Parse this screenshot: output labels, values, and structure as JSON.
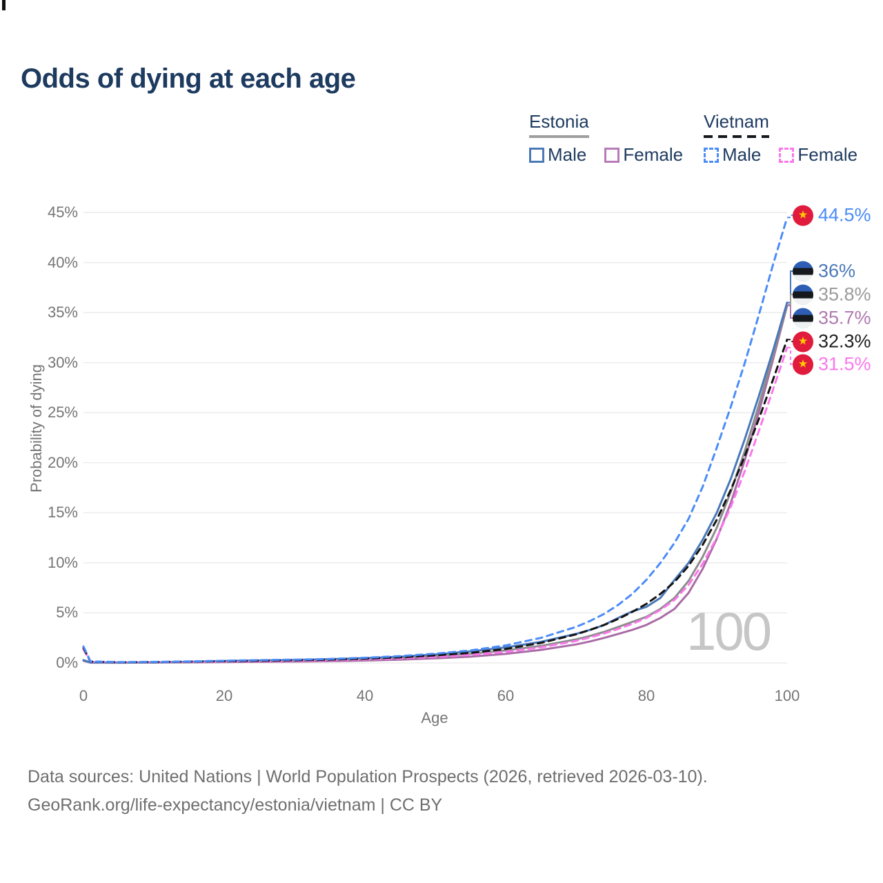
{
  "title": "Odds of dying at each age",
  "legend": {
    "estonia": {
      "name": "Estonia",
      "male": "Male",
      "female": "Female"
    },
    "vietnam": {
      "name": "Vietnam",
      "male": "Male",
      "female": "Female"
    }
  },
  "axes": {
    "x_label": "Age",
    "y_label": "Probability of dying",
    "x_tick_labels": [
      "0",
      "20",
      "40",
      "60",
      "80",
      "100"
    ],
    "y_tick_labels": [
      "0%",
      "5%",
      "10%",
      "15%",
      "20%",
      "25%",
      "30%",
      "35%",
      "40%",
      "45%"
    ]
  },
  "annotations": {
    "age_watermark": "100"
  },
  "footer": {
    "line1": "Data sources: United Nations | World Population Prospects (2026, retrieved 2026-03-10).",
    "line2": "GeoRank.org/life-expectancy/estonia/vietnam | CC BY"
  },
  "colors": {
    "title_text": "#1d3a5f",
    "tick_text": "#757575",
    "gridline": "#ececec",
    "estonia_male": "#4a78b8",
    "estonia_female": "#a96ba5",
    "estonia_total": "#8c8c8c",
    "vietnam_male": "#4b8cf7",
    "vietnam_female": "#fb77ec",
    "vietnam_total": "#141414",
    "estonia_flag_blue": "#2d5eb4",
    "vietnam_flag_red": "#e01b3c",
    "vietnam_flag_star": "#ffcd00",
    "watermark": "#c6c6c6"
  },
  "chart_data": {
    "type": "line",
    "title": "Odds of dying at each age",
    "xlabel": "Age",
    "ylabel": "Probability of dying",
    "xlim": [
      0,
      100
    ],
    "ylim_pct": [
      0,
      45
    ],
    "x_ticks": [
      0,
      20,
      40,
      60,
      80,
      100
    ],
    "y_ticks_pct": [
      0,
      5,
      10,
      15,
      20,
      25,
      30,
      35,
      40,
      45
    ],
    "grid": "horizontal-only",
    "legend_position": "top-right",
    "ages": [
      0,
      1,
      5,
      10,
      15,
      20,
      25,
      30,
      35,
      40,
      45,
      50,
      55,
      60,
      65,
      70,
      72,
      74,
      76,
      78,
      80,
      82,
      84,
      86,
      88,
      90,
      92,
      94,
      96,
      98,
      100
    ],
    "series": [
      {
        "id": "estonia_female",
        "name": "Estonia Female",
        "style": "solid",
        "color": "#a96ba5",
        "values_pct": [
          0.22,
          0.03,
          0.025,
          0.04,
          0.06,
          0.09,
          0.11,
          0.14,
          0.18,
          0.24,
          0.33,
          0.46,
          0.63,
          0.9,
          1.3,
          1.85,
          2.15,
          2.5,
          2.9,
          3.3,
          3.8,
          4.5,
          5.4,
          7.0,
          9.4,
          12.4,
          16.0,
          20.3,
          25.1,
          30.3,
          35.7
        ],
        "end_value_pct": 35.7
      },
      {
        "id": "estonia_total",
        "name": "Estonia",
        "style": "solid",
        "color": "#8c8c8c",
        "values_pct": [
          0.25,
          0.04,
          0.03,
          0.05,
          0.09,
          0.14,
          0.18,
          0.22,
          0.28,
          0.36,
          0.48,
          0.66,
          0.9,
          1.25,
          1.7,
          2.35,
          2.7,
          3.1,
          3.6,
          4.1,
          4.6,
          5.4,
          6.5,
          8.2,
          10.6,
          13.5,
          17.1,
          21.2,
          25.8,
          30.7,
          35.8
        ],
        "end_value_pct": 35.8
      },
      {
        "id": "estonia_male",
        "name": "Estonia Male",
        "style": "solid",
        "color": "#4a78b8",
        "values_pct": [
          0.28,
          0.05,
          0.04,
          0.06,
          0.12,
          0.2,
          0.25,
          0.3,
          0.38,
          0.48,
          0.62,
          0.85,
          1.15,
          1.55,
          2.1,
          2.9,
          3.3,
          3.8,
          4.5,
          5.15,
          5.6,
          6.5,
          8.3,
          10.0,
          12.3,
          15.0,
          18.4,
          22.4,
          26.7,
          31.2,
          36.0
        ],
        "end_value_pct": 36.0
      },
      {
        "id": "vietnam_female",
        "name": "Vietnam Female",
        "style": "dashed",
        "color": "#fb77ec",
        "values_pct": [
          1.35,
          0.11,
          0.06,
          0.08,
          0.1,
          0.13,
          0.16,
          0.2,
          0.26,
          0.34,
          0.45,
          0.6,
          0.8,
          1.1,
          1.55,
          2.2,
          2.55,
          2.95,
          3.4,
          3.9,
          4.5,
          5.3,
          6.3,
          7.8,
          9.9,
          12.5,
          15.6,
          19.2,
          23.2,
          27.3,
          31.5
        ],
        "end_value_pct": 31.5
      },
      {
        "id": "vietnam_total",
        "name": "Vietnam",
        "style": "dashed",
        "color": "#141414",
        "values_pct": [
          1.5,
          0.13,
          0.07,
          0.09,
          0.13,
          0.18,
          0.22,
          0.27,
          0.33,
          0.43,
          0.56,
          0.76,
          1.0,
          1.4,
          2.0,
          2.85,
          3.3,
          3.8,
          4.4,
          5.1,
          5.9,
          6.9,
          8.1,
          9.7,
          11.8,
          14.3,
          17.3,
          20.7,
          24.4,
          28.3,
          32.3
        ],
        "end_value_pct": 32.3
      },
      {
        "id": "vietnam_male",
        "name": "Vietnam Male",
        "style": "dashed",
        "color": "#4b8cf7",
        "values_pct": [
          1.65,
          0.15,
          0.08,
          0.1,
          0.15,
          0.22,
          0.28,
          0.33,
          0.4,
          0.52,
          0.68,
          0.92,
          1.25,
          1.75,
          2.5,
          3.6,
          4.2,
          4.9,
          5.8,
          6.9,
          8.3,
          10.0,
          12.0,
          14.4,
          17.6,
          21.5,
          25.6,
          30.0,
          34.8,
          39.8,
          44.5
        ],
        "end_value_pct": 44.5
      }
    ]
  },
  "end_labels": [
    {
      "series": "vietnam_male",
      "value_text": "44.5%",
      "flag": "vietnam",
      "color": "#4b8cf7",
      "end_pct": 44.5
    },
    {
      "series": "estonia_male",
      "value_text": "36%",
      "flag": "estonia",
      "color": "#4a78b8",
      "end_pct": 36.0
    },
    {
      "series": "estonia_total",
      "value_text": "35.8%",
      "flag": "estonia",
      "color": "#9b9b9b",
      "end_pct": 35.8
    },
    {
      "series": "estonia_female",
      "value_text": "35.7%",
      "flag": "estonia",
      "color": "#b07ab0",
      "end_pct": 35.7
    },
    {
      "series": "vietnam_total",
      "value_text": "32.3%",
      "flag": "vietnam",
      "color": "#1f1f1f",
      "end_pct": 32.3
    },
    {
      "series": "vietnam_female",
      "value_text": "31.5%",
      "flag": "vietnam",
      "color": "#fb77ec",
      "end_pct": 31.5
    }
  ]
}
